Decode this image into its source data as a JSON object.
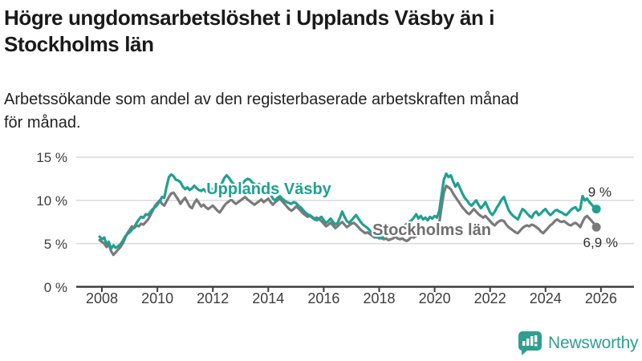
{
  "title": {
    "lines": [
      "Högre ungdomsarbetslöshet i Upplands Väsby än i",
      "Stockholms län"
    ]
  },
  "subtitle": {
    "lines": [
      "Arbetssökande som andel av den registerbaserade arbetskraften månad",
      "för månad."
    ]
  },
  "branding": {
    "logo_text": "Newsworthy",
    "icon": "newsworthy-chart-bubble-icon",
    "brand_color": "#2f9f90"
  },
  "colors": {
    "accent_teal": "#20a08f",
    "series_gray": "#7a7a7a",
    "gridline": "#d9d9d9",
    "axis": "#3f3f3f",
    "text_dark": "#1a1a1a"
  },
  "chart_data": {
    "type": "line",
    "title": "Högre ungdomsarbetslöshet i Upplands Väsby än i Stockholms län",
    "subtitle": "Arbetssökande som andel av den registerbaserade arbetskraften månad för månad.",
    "x_unit": "year (monthly points)",
    "x_start": 2007.9167,
    "x_step": 0.0833333,
    "xlim": [
      2007.07,
      2027.2
    ],
    "ylim": [
      0,
      15.5
    ],
    "grid": "horizontal",
    "legend": "inline-labels",
    "x_ticks": [
      2008,
      2010,
      2012,
      2014,
      2016,
      2018,
      2020,
      2022,
      2024,
      2026
    ],
    "x_tick_labels": [
      "2008",
      "2010",
      "2012",
      "2014",
      "2016",
      "2018",
      "2020",
      "2022",
      "2024",
      "2026"
    ],
    "y_ticks": [
      0,
      5,
      10,
      15
    ],
    "y_tick_labels": [
      "0 %",
      "5 %",
      "10 %",
      "15 %"
    ],
    "series": [
      {
        "name": "Stockholms län",
        "color": "#7a7a7a",
        "end_label": "6,9 %",
        "end_value": 6.9,
        "values": [
          5.4,
          5.2,
          5.0,
          4.6,
          4.9,
          4.1,
          3.7,
          4.0,
          4.3,
          4.6,
          5.0,
          5.6,
          6.2,
          6.6,
          7.0,
          6.8,
          7.1,
          7.0,
          7.3,
          7.2,
          7.5,
          7.8,
          8.3,
          8.8,
          9.4,
          9.7,
          10.0,
          9.6,
          9.4,
          9.9,
          10.4,
          10.8,
          10.9,
          10.5,
          10.1,
          9.6,
          10.0,
          10.3,
          9.8,
          9.3,
          9.1,
          9.7,
          10.1,
          9.7,
          9.3,
          9.5,
          9.2,
          9.0,
          9.2,
          9.4,
          9.1,
          8.8,
          8.6,
          9.0,
          9.4,
          9.7,
          9.9,
          10.1,
          9.8,
          9.6,
          9.8,
          10.0,
          10.2,
          10.4,
          10.1,
          9.9,
          9.7,
          9.5,
          9.7,
          9.9,
          10.1,
          9.8,
          10.0,
          10.2,
          9.8,
          9.5,
          9.8,
          10.0,
          10.2,
          9.9,
          9.6,
          9.3,
          9.0,
          8.8,
          9.0,
          9.3,
          9.1,
          8.8,
          8.5,
          8.3,
          8.1,
          8.3,
          8.1,
          7.9,
          8.0,
          7.8,
          7.6,
          7.3,
          7.0,
          7.2,
          7.4,
          7.1,
          6.8,
          7.0,
          7.3,
          7.5,
          7.2,
          6.9,
          7.1,
          7.3,
          7.4,
          7.2,
          6.9,
          6.6,
          6.4,
          6.2,
          6.3,
          6.1,
          5.9,
          5.7,
          5.8,
          5.6,
          5.7,
          5.5,
          5.6,
          5.4,
          5.5,
          5.6,
          5.8,
          5.6,
          5.5,
          5.6,
          5.4,
          5.3,
          5.5,
          5.8,
          5.7,
          5.9,
          6.1,
          6.0,
          6.2,
          6.4,
          6.3,
          6.5,
          6.7,
          6.9,
          6.8,
          7.4,
          9.2,
          10.9,
          11.7,
          11.5,
          11.3,
          10.8,
          10.4,
          10.0,
          9.6,
          9.2,
          8.9,
          8.6,
          8.4,
          8.7,
          9.0,
          8.7,
          8.4,
          8.2,
          8.0,
          8.2,
          7.9,
          7.6,
          7.3,
          7.1,
          7.4,
          7.6,
          7.7,
          7.6,
          7.2,
          6.9,
          6.7,
          6.5,
          6.3,
          6.2,
          6.5,
          6.8,
          7.0,
          7.1,
          7.0,
          7.2,
          7.1,
          6.9,
          6.7,
          6.4,
          6.2,
          6.5,
          6.8,
          7.1,
          7.3,
          7.6,
          7.8,
          7.6,
          7.5,
          7.6,
          7.4,
          7.2,
          7.1,
          7.3,
          7.4,
          7.2,
          6.9,
          7.5,
          8.0,
          8.2,
          7.9,
          7.6,
          7.3,
          6.9
        ]
      },
      {
        "name": "Upplands Väsby",
        "color": "#20a08f",
        "end_label": "9 %",
        "end_value": 9.0,
        "values": [
          5.8,
          5.5,
          5.7,
          4.9,
          5.2,
          4.4,
          4.8,
          4.5,
          4.7,
          4.9,
          5.3,
          5.8,
          6.1,
          6.3,
          6.6,
          6.9,
          7.4,
          7.8,
          8.1,
          8.0,
          8.4,
          8.3,
          8.7,
          9.0,
          9.2,
          9.5,
          9.9,
          10.4,
          10.3,
          11.6,
          12.7,
          13.0,
          12.8,
          12.4,
          12.3,
          12.1,
          11.6,
          11.3,
          11.5,
          11.2,
          11.4,
          11.7,
          11.4,
          11.2,
          11.1,
          11.3,
          11.0,
          11.2,
          11.4,
          11.2,
          11.0,
          11.3,
          11.6,
          12.0,
          12.6,
          12.9,
          12.6,
          12.2,
          11.9,
          11.7,
          11.9,
          11.8,
          12.0,
          12.3,
          12.5,
          12.4,
          12.1,
          11.9,
          11.7,
          11.9,
          11.6,
          11.4,
          11.2,
          11.0,
          10.7,
          10.2,
          10.0,
          10.3,
          10.5,
          10.2,
          10.0,
          9.8,
          9.7,
          9.6,
          9.8,
          9.7,
          9.4,
          9.2,
          8.9,
          8.6,
          8.4,
          8.2,
          8.0,
          7.8,
          7.7,
          7.9,
          8.1,
          7.7,
          7.4,
          7.6,
          7.9,
          7.5,
          7.2,
          7.4,
          8.0,
          8.7,
          8.1,
          7.6,
          7.4,
          7.7,
          8.0,
          8.3,
          7.9,
          7.5,
          7.2,
          7.0,
          6.8,
          6.5,
          6.2,
          5.9,
          5.7,
          5.8,
          5.6,
          5.9,
          6.1,
          6.0,
          6.2,
          6.4,
          6.3,
          6.5,
          6.7,
          6.9,
          7.1,
          7.3,
          7.5,
          7.7,
          8.0,
          8.4,
          7.9,
          8.2,
          7.8,
          8.0,
          7.7,
          8.1,
          7.9,
          8.2,
          8.0,
          8.8,
          10.6,
          12.4,
          13.1,
          12.7,
          12.9,
          12.2,
          11.6,
          12.0,
          11.4,
          10.8,
          10.3,
          10.0,
          9.6,
          9.4,
          9.7,
          10.0,
          9.5,
          9.1,
          9.4,
          9.8,
          9.2,
          8.6,
          8.3,
          8.7,
          9.2,
          9.6,
          10.1,
          10.4,
          9.6,
          8.9,
          8.5,
          8.2,
          8.0,
          7.8,
          8.4,
          9.0,
          8.8,
          8.5,
          8.2,
          8.0,
          8.5,
          8.7,
          8.3,
          8.5,
          8.8,
          9.0,
          8.6,
          8.3,
          8.5,
          8.8,
          8.9,
          8.7,
          8.6,
          8.4,
          8.3,
          8.6,
          8.9,
          9.1,
          9.2,
          8.8,
          9.0,
          10.5,
          10.0,
          10.2,
          9.8,
          9.5,
          9.2,
          9.0
        ]
      }
    ]
  }
}
